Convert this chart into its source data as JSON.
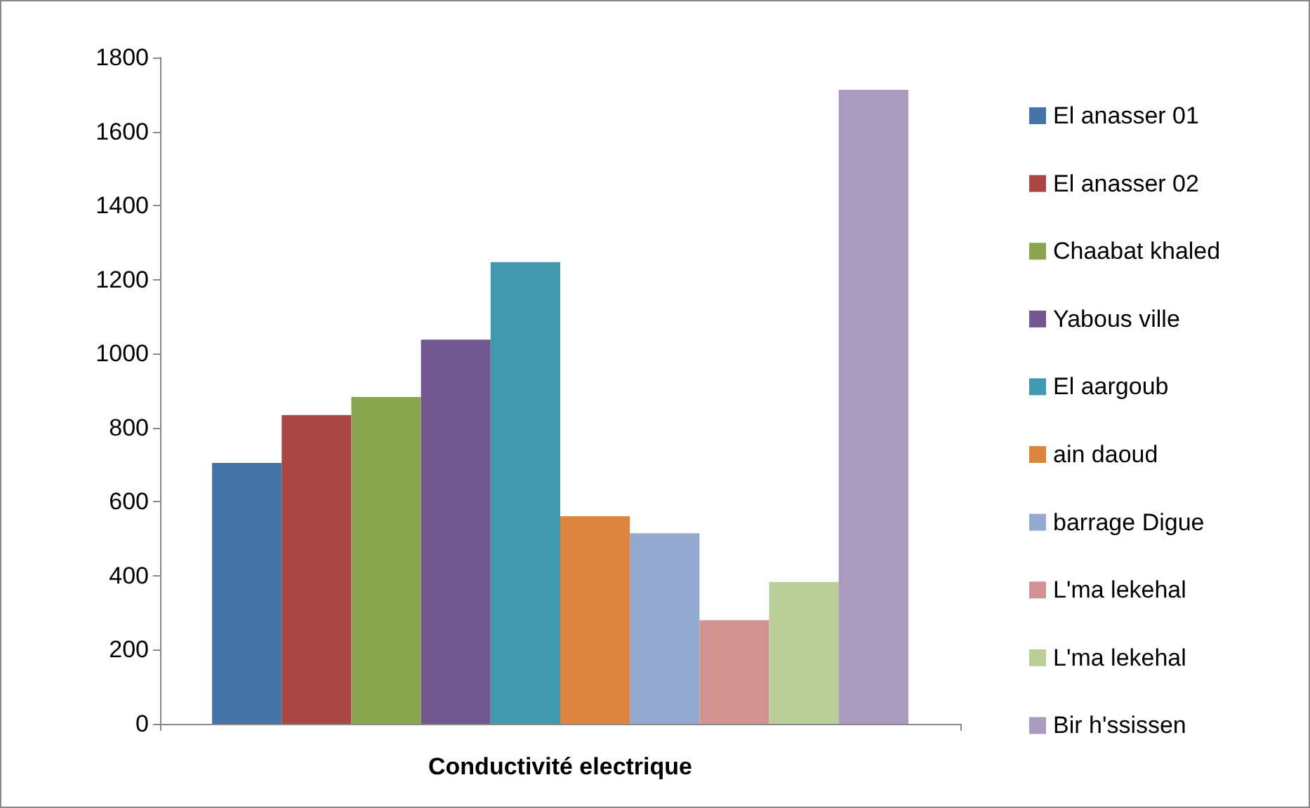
{
  "chart_data": {
    "type": "bar",
    "categories": [
      "Conductivité electrique"
    ],
    "series": [
      {
        "name": "El anasser 01",
        "color": "#4573a7",
        "values": [
          705
        ]
      },
      {
        "name": "El anasser 02",
        "color": "#aa4643",
        "values": [
          834
        ]
      },
      {
        "name": "Chaabat khaled",
        "color": "#89a54e",
        "values": [
          883
        ]
      },
      {
        "name": "Yabous ville",
        "color": "#71588f",
        "values": [
          1038
        ]
      },
      {
        "name": "El aargoub",
        "color": "#4198af",
        "values": [
          1247
        ]
      },
      {
        "name": "ain daoud",
        "color": "#db843d",
        "values": [
          561
        ]
      },
      {
        "name": "barrage Digue",
        "color": "#93a9cf",
        "values": [
          515
        ]
      },
      {
        "name": "L'ma lekehal",
        "color": "#d19392",
        "values": [
          280
        ]
      },
      {
        "name": "L'ma lekehal",
        "color": "#b9cd96",
        "values": [
          383
        ]
      },
      {
        "name": "Bir h'ssissen",
        "color": "#a99bbd",
        "values": [
          1713
        ]
      }
    ],
    "ylim": [
      0,
      1800
    ],
    "yticks": [
      0,
      200,
      400,
      600,
      800,
      1000,
      1200,
      1400,
      1600,
      1800
    ],
    "grid": false,
    "legend": "right"
  }
}
